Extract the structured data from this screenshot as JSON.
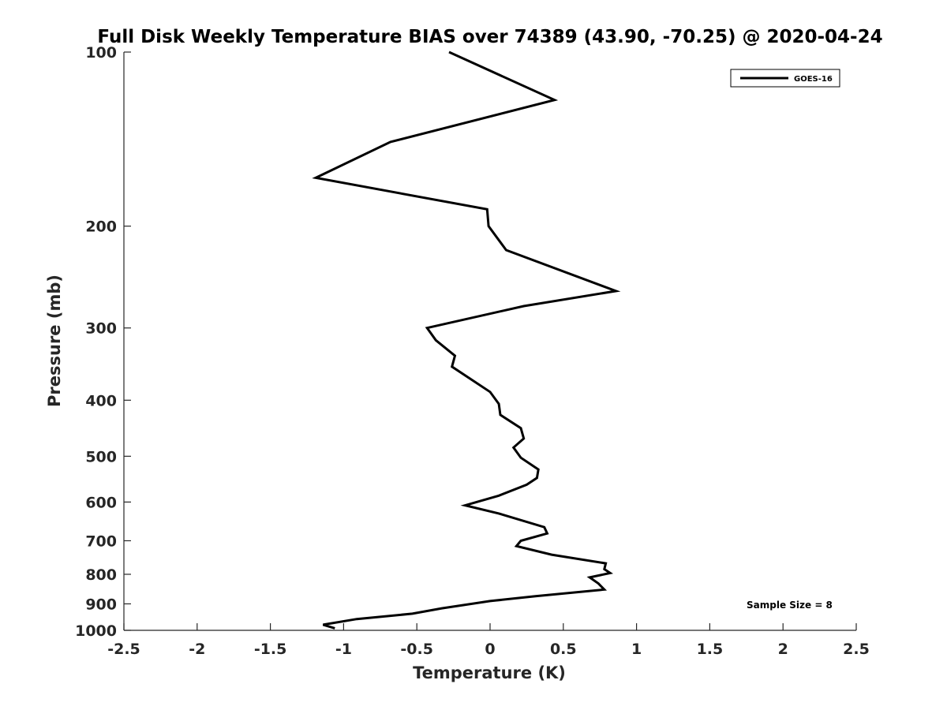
{
  "chart_data": {
    "type": "line",
    "title": "Full Disk Weekly Temperature BIAS over 74389 (43.90, -70.25) @ 2020-04-24",
    "xlabel": "Temperature (K)",
    "ylabel": "Pressure (mb)",
    "xlim": [
      -2.5,
      2.5
    ],
    "ylim": [
      1000,
      100
    ],
    "yscale": "log",
    "y_inverted": true,
    "x_ticks": [
      "-2.5",
      "-2",
      "-1.5",
      "-1",
      "-0.5",
      "0",
      "0.5",
      "1",
      "1.5",
      "2",
      "2.5"
    ],
    "y_ticks": [
      "100",
      "200",
      "300",
      "400",
      "500",
      "600",
      "700",
      "800",
      "900",
      "1000"
    ],
    "grid": false,
    "legend_position": "top-right",
    "line_color": "#000000",
    "series": [
      {
        "name": "GOES-16",
        "points": [
          [
            -0.28,
            100
          ],
          [
            0.44,
            121
          ],
          [
            -0.68,
            143
          ],
          [
            -1.19,
            165
          ],
          [
            -0.02,
            187
          ],
          [
            -0.01,
            200
          ],
          [
            0.11,
            220
          ],
          [
            0.86,
            259
          ],
          [
            0.23,
            275
          ],
          [
            -0.43,
            300
          ],
          [
            -0.37,
            315
          ],
          [
            -0.24,
            335
          ],
          [
            -0.26,
            350
          ],
          [
            0.0,
            387
          ],
          [
            0.06,
            406
          ],
          [
            0.07,
            424
          ],
          [
            0.21,
            447
          ],
          [
            0.23,
            466
          ],
          [
            0.16,
            483
          ],
          [
            0.21,
            503
          ],
          [
            0.33,
            527
          ],
          [
            0.32,
            545
          ],
          [
            0.25,
            560
          ],
          [
            0.06,
            585
          ],
          [
            -0.17,
            608
          ],
          [
            0.06,
            628
          ],
          [
            0.37,
            663
          ],
          [
            0.39,
            680
          ],
          [
            0.21,
            700
          ],
          [
            0.18,
            715
          ],
          [
            0.42,
            740
          ],
          [
            0.79,
            766
          ],
          [
            0.78,
            784
          ],
          [
            0.82,
            796
          ],
          [
            0.68,
            810
          ],
          [
            0.74,
            830
          ],
          [
            0.78,
            850
          ],
          [
            0.31,
            873
          ],
          [
            0.0,
            890
          ],
          [
            -0.33,
            916
          ],
          [
            -0.53,
            936
          ],
          [
            -0.91,
            956
          ],
          [
            -1.14,
            978
          ],
          [
            -1.06,
            992
          ]
        ]
      }
    ],
    "annotation": "Sample Size = 8"
  }
}
